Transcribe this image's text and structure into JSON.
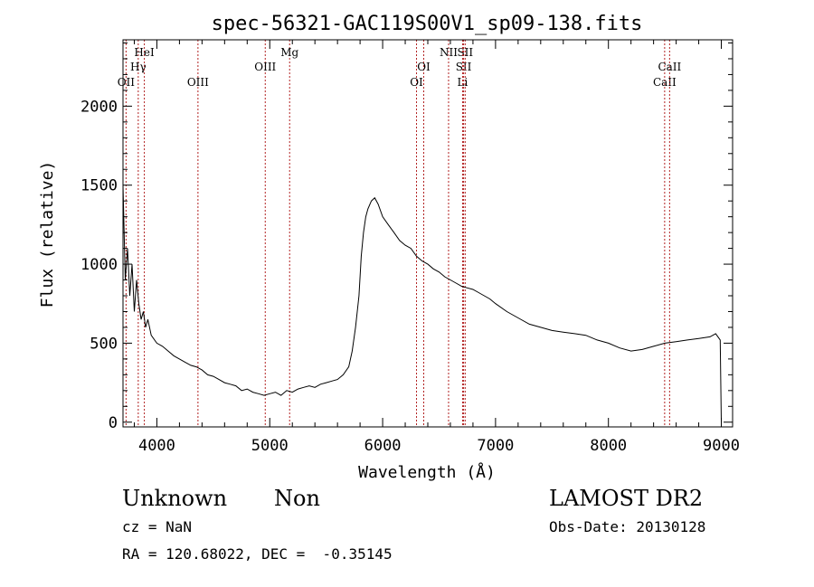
{
  "chart_data": {
    "type": "line",
    "title": "spec-56321-GAC119S00V1_sp09-138.fits",
    "xlabel": "Wavelength (Å)",
    "ylabel": "Flux (relative)",
    "xlim": [
      3700,
      9100
    ],
    "ylim": [
      -30,
      2420
    ],
    "xticks": [
      4000,
      5000,
      6000,
      7000,
      8000,
      9000
    ],
    "yticks": [
      0,
      500,
      1000,
      1500,
      2000
    ],
    "grid": false,
    "series": [
      {
        "color": "#000000",
        "x": [
          3700,
          3720,
          3740,
          3760,
          3780,
          3800,
          3820,
          3840,
          3860,
          3880,
          3900,
          3920,
          3950,
          4000,
          4050,
          4100,
          4150,
          4200,
          4250,
          4300,
          4350,
          4400,
          4450,
          4500,
          4550,
          4600,
          4650,
          4700,
          4750,
          4800,
          4850,
          4900,
          4950,
          5000,
          5050,
          5100,
          5150,
          5200,
          5250,
          5300,
          5350,
          5400,
          5450,
          5500,
          5550,
          5600,
          5650,
          5700,
          5730,
          5760,
          5790,
          5810,
          5830,
          5850,
          5870,
          5900,
          5930,
          5960,
          6000,
          6050,
          6100,
          6150,
          6200,
          6250,
          6300,
          6350,
          6400,
          6450,
          6500,
          6550,
          6600,
          6650,
          6700,
          6750,
          6800,
          6850,
          6900,
          6950,
          7000,
          7100,
          7200,
          7300,
          7400,
          7500,
          7600,
          7700,
          7800,
          7900,
          8000,
          8100,
          8200,
          8300,
          8400,
          8500,
          8600,
          8700,
          8800,
          8900,
          8950,
          8990,
          9000
        ],
        "y": [
          1500,
          900,
          1100,
          800,
          1000,
          700,
          900,
          750,
          650,
          700,
          600,
          650,
          550,
          500,
          480,
          450,
          420,
          400,
          380,
          360,
          350,
          330,
          300,
          290,
          270,
          250,
          240,
          230,
          200,
          210,
          190,
          180,
          170,
          180,
          190,
          170,
          200,
          190,
          210,
          220,
          230,
          220,
          240,
          250,
          260,
          270,
          300,
          350,
          450,
          600,
          800,
          1050,
          1200,
          1300,
          1350,
          1400,
          1420,
          1380,
          1300,
          1250,
          1200,
          1150,
          1120,
          1100,
          1050,
          1020,
          1000,
          970,
          950,
          920,
          900,
          880,
          860,
          850,
          840,
          820,
          800,
          780,
          750,
          700,
          660,
          620,
          600,
          580,
          570,
          560,
          550,
          520,
          500,
          470,
          450,
          460,
          480,
          500,
          510,
          520,
          530,
          540,
          560,
          520,
          0
        ]
      }
    ],
    "lines": [
      {
        "label": "OII",
        "x": 3727,
        "row": 3
      },
      {
        "label": "Hγ",
        "x": 3835,
        "row": 2
      },
      {
        "label": "HeI",
        "x": 3889,
        "row": 1
      },
      {
        "label": "OIII",
        "x": 4364,
        "row": 3
      },
      {
        "label": "OIII",
        "x": 4960,
        "row": 2
      },
      {
        "label": "Mg",
        "x": 5176,
        "row": 1
      },
      {
        "label": "OI",
        "x": 6300,
        "row": 3
      },
      {
        "label": "OI",
        "x": 6364,
        "row": 2
      },
      {
        "label": "NII",
        "x": 6584,
        "row": 1
      },
      {
        "label": "SII",
        "x": 6717,
        "row": 2
      },
      {
        "label": "SII",
        "x": 6731,
        "row": 1
      },
      {
        "label": "Li",
        "x": 6708,
        "row": 3
      },
      {
        "label": "CaII",
        "x": 8498,
        "row": 3
      },
      {
        "label": "CaII",
        "x": 8542,
        "row": 2
      }
    ],
    "line_color": "#b22222"
  },
  "info": {
    "class_label": "Unknown",
    "subclass_label": "Non",
    "survey": "LAMOST DR2",
    "cz": "cz = NaN",
    "obs_date": "Obs-Date: 20130128",
    "coords": "RA = 120.68022, DEC =  -0.35145"
  }
}
